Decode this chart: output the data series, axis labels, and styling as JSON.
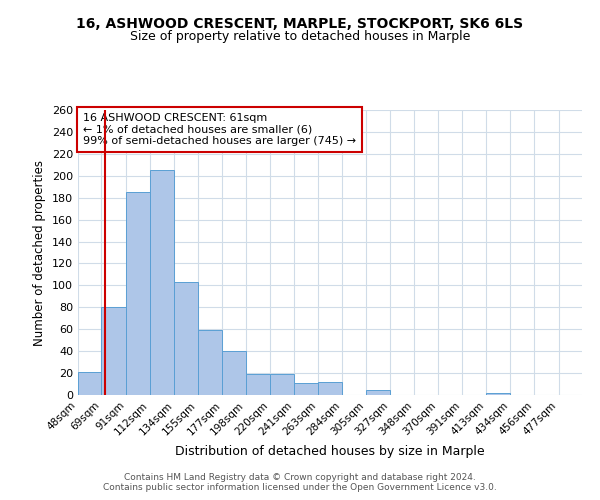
{
  "title": "16, ASHWOOD CRESCENT, MARPLE, STOCKPORT, SK6 6LS",
  "subtitle": "Size of property relative to detached houses in Marple",
  "xlabel": "Distribution of detached houses by size in Marple",
  "ylabel": "Number of detached properties",
  "bar_color": "#aec6e8",
  "bar_edge_color": "#5a9fd4",
  "annotation_box_text": "16 ASHWOOD CRESCENT: 61sqm\n← 1% of detached houses are smaller (6)\n99% of semi-detached houses are larger (745) →",
  "annotation_box_color": "#ffffff",
  "annotation_box_edge_color": "#cc0000",
  "vline_x": 61,
  "vline_color": "#cc0000",
  "categories": [
    "48sqm",
    "69sqm",
    "91sqm",
    "112sqm",
    "134sqm",
    "155sqm",
    "177sqm",
    "198sqm",
    "220sqm",
    "241sqm",
    "263sqm",
    "284sqm",
    "305sqm",
    "327sqm",
    "348sqm",
    "370sqm",
    "391sqm",
    "413sqm",
    "434sqm",
    "456sqm",
    "477sqm"
  ],
  "bin_edges": [
    37,
    58,
    80,
    101,
    123,
    144,
    166,
    187,
    209,
    230,
    252,
    273,
    295,
    316,
    338,
    359,
    381,
    402,
    424,
    445,
    467,
    488
  ],
  "values": [
    21,
    80,
    185,
    205,
    103,
    59,
    40,
    19,
    19,
    11,
    12,
    0,
    5,
    0,
    0,
    0,
    0,
    2,
    0,
    0,
    0
  ],
  "ylim": [
    0,
    260
  ],
  "yticks": [
    0,
    20,
    40,
    60,
    80,
    100,
    120,
    140,
    160,
    180,
    200,
    220,
    240,
    260
  ],
  "footer_line1": "Contains HM Land Registry data © Crown copyright and database right 2024.",
  "footer_line2": "Contains public sector information licensed under the Open Government Licence v3.0.",
  "background_color": "#ffffff",
  "grid_color": "#d0dce8"
}
